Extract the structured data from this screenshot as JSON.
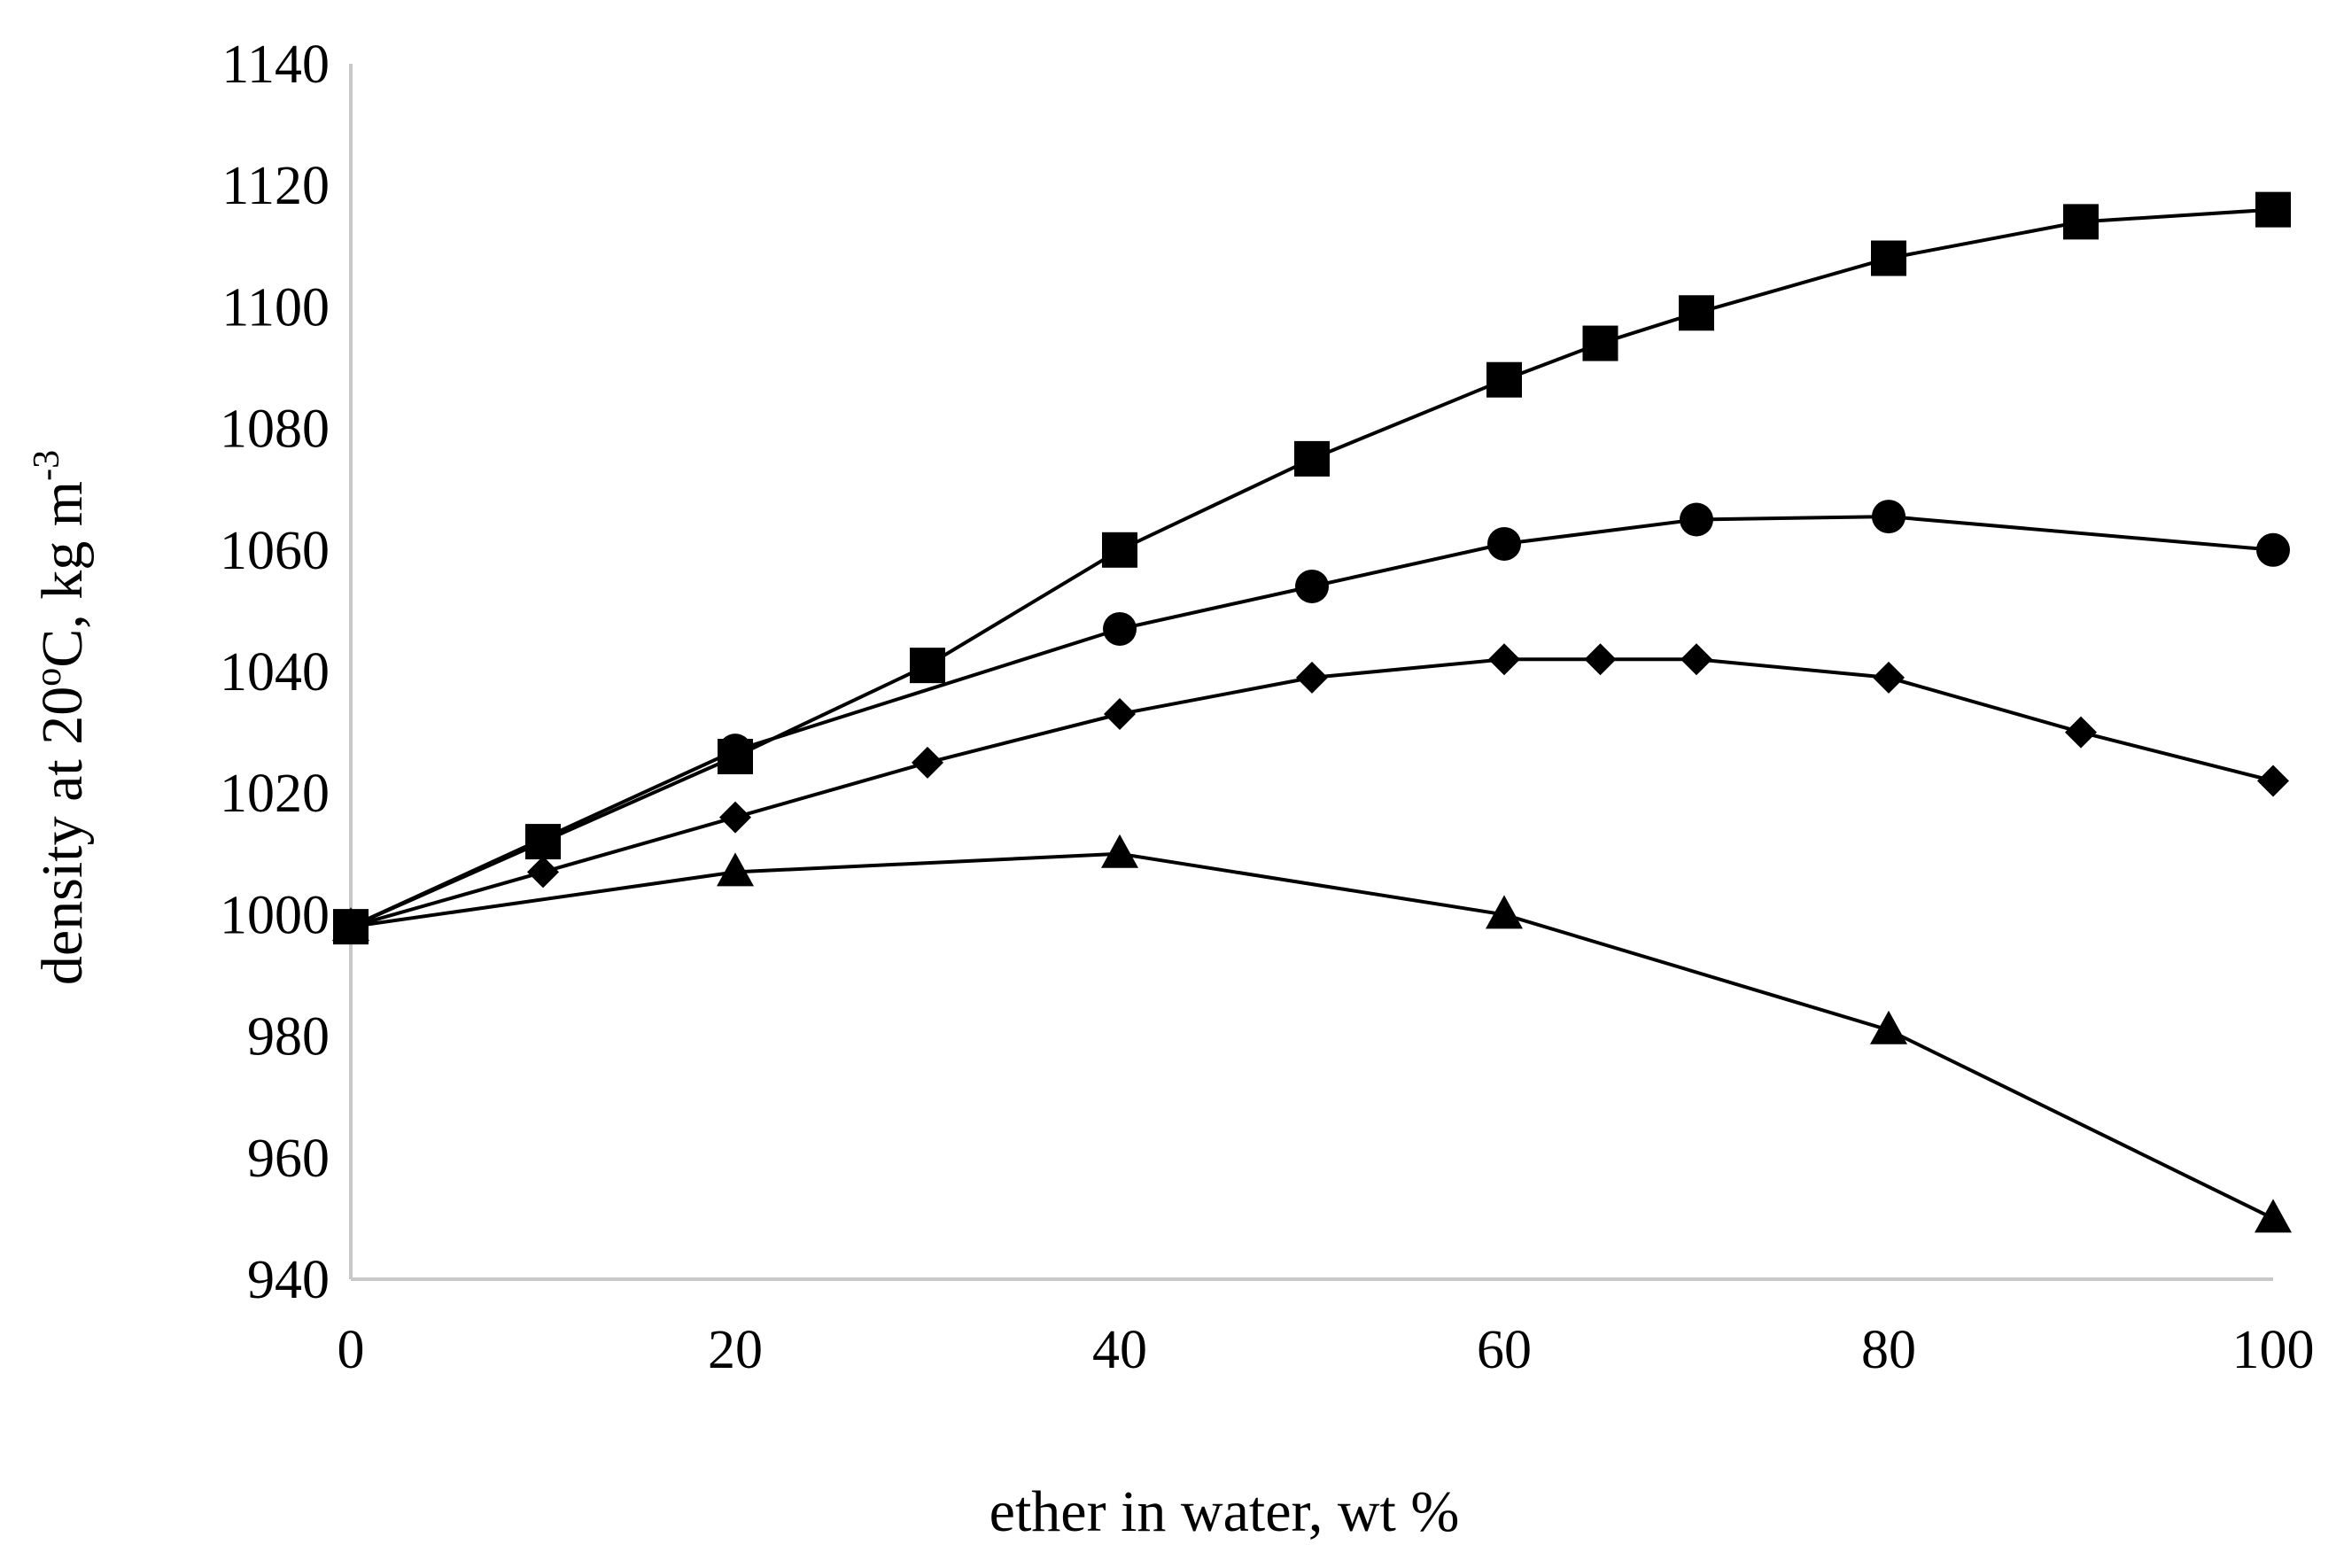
{
  "chart_data": {
    "type": "line",
    "title": "",
    "xlabel": "ether in water, wt %",
    "ylabel_main": "density at 20",
    "ylabel_degree": "o",
    "ylabel_rest": "C, kg m",
    "ylabel_exponent": "-3",
    "xlim": [
      0,
      100
    ],
    "ylim": [
      940,
      1140
    ],
    "x_ticks": [
      0,
      20,
      40,
      60,
      80,
      100
    ],
    "y_ticks": [
      940,
      960,
      980,
      1000,
      1020,
      1040,
      1060,
      1080,
      1100,
      1120,
      1140
    ],
    "grid": false,
    "series": [
      {
        "name": "square",
        "marker": "square",
        "x": [
          0,
          10,
          20,
          30,
          40,
          50,
          60,
          65,
          70,
          80,
          90,
          100
        ],
        "y": [
          998,
          1012,
          1026,
          1041,
          1060,
          1075,
          1088,
          1094,
          1099,
          1108,
          1114,
          1116
        ]
      },
      {
        "name": "circle",
        "marker": "circle",
        "x": [
          0,
          20,
          40,
          50,
          60,
          70,
          80,
          100
        ],
        "y": [
          998,
          1027,
          1047,
          1054,
          1061,
          1065,
          1065.5,
          1060
        ]
      },
      {
        "name": "diamond",
        "marker": "diamond",
        "x": [
          0,
          10,
          20,
          30,
          40,
          50,
          60,
          65,
          70,
          80,
          90,
          100
        ],
        "y": [
          998,
          1007,
          1016,
          1025,
          1033,
          1039,
          1042,
          1042,
          1042,
          1039,
          1030,
          1022
        ]
      },
      {
        "name": "triangle",
        "marker": "triangle",
        "x": [
          0,
          20,
          40,
          60,
          80,
          100
        ],
        "y": [
          998,
          1007,
          1010,
          1000,
          981,
          950
        ]
      }
    ]
  }
}
